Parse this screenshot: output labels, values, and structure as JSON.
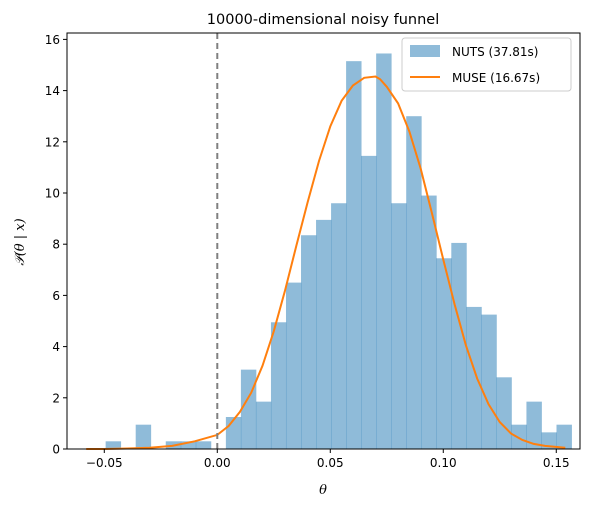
{
  "chart_data": {
    "type": "histogram+line",
    "title": "10000-dimensional noisy funnel",
    "xlabel": "θ",
    "ylabel": "𝒫(θ | x)",
    "xlim": [
      -0.0665,
      0.1605
    ],
    "ylim": [
      0,
      16.25
    ],
    "x_ticks": [
      -0.05,
      0.0,
      0.05,
      0.1,
      0.15
    ],
    "x_tick_labels": [
      "−0.05",
      "0.00",
      "0.05",
      "0.10",
      "0.15"
    ],
    "y_ticks": [
      0,
      2,
      4,
      6,
      8,
      10,
      12,
      14,
      16
    ],
    "y_tick_labels": [
      "0",
      "2",
      "4",
      "6",
      "8",
      "10",
      "12",
      "14",
      "16"
    ],
    "reference_line": {
      "x": 0.0,
      "style": "dashed",
      "color": "#808080"
    },
    "legend_position": "top-right",
    "series": [
      {
        "name": "NUTS (37.81s)",
        "kind": "histogram",
        "color": "#1f77b4",
        "opacity": 0.5,
        "bin_width": 0.00665,
        "bin_edges_start": -0.0494,
        "values": [
          0.3,
          0.0,
          0.95,
          0.0,
          0.3,
          0.3,
          0.3,
          0.0,
          1.25,
          3.1,
          1.85,
          4.95,
          6.5,
          8.35,
          8.95,
          9.6,
          15.15,
          11.45,
          15.45,
          9.6,
          13.0,
          9.9,
          7.45,
          8.05,
          5.55,
          5.25,
          2.8,
          0.95,
          1.85,
          0.65,
          0.95
        ]
      },
      {
        "name": "MUSE (16.67s)",
        "kind": "line",
        "color": "#ff7f0e",
        "x": [
          -0.058,
          -0.05,
          -0.04,
          -0.03,
          -0.02,
          -0.01,
          0.0,
          0.005,
          0.01,
          0.015,
          0.02,
          0.025,
          0.03,
          0.035,
          0.04,
          0.045,
          0.05,
          0.055,
          0.06,
          0.065,
          0.07,
          0.072,
          0.075,
          0.08,
          0.085,
          0.09,
          0.095,
          0.1,
          0.105,
          0.11,
          0.115,
          0.12,
          0.125,
          0.13,
          0.135,
          0.14,
          0.145,
          0.154
        ],
        "y": [
          0.0,
          0.0,
          0.02,
          0.05,
          0.12,
          0.3,
          0.55,
          0.9,
          1.45,
          2.2,
          3.25,
          4.6,
          6.2,
          7.95,
          9.65,
          11.25,
          12.6,
          13.6,
          14.2,
          14.5,
          14.55,
          14.45,
          14.15,
          13.5,
          12.4,
          10.95,
          9.2,
          7.4,
          5.65,
          4.05,
          2.75,
          1.75,
          1.05,
          0.6,
          0.35,
          0.2,
          0.12,
          0.05
        ]
      }
    ]
  }
}
